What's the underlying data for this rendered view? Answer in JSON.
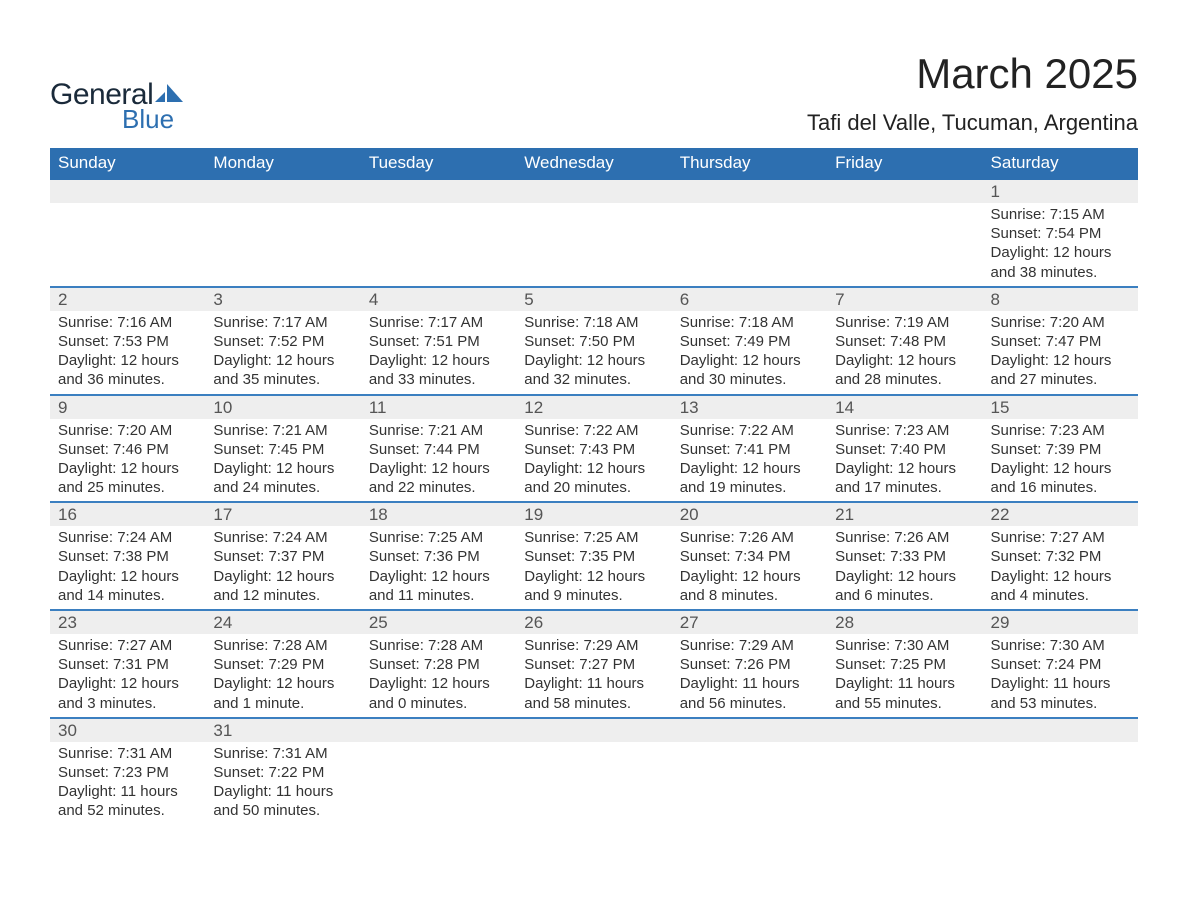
{
  "logo": {
    "text_general": "General",
    "text_blue": "Blue",
    "sail_color": "#2d6fb0"
  },
  "title": "March 2025",
  "location": "Tafi del Valle, Tucuman, Argentina",
  "colors": {
    "header_bg": "#2d6fb0",
    "header_text": "#ffffff",
    "row_border": "#3b7fc0",
    "daynum_bg": "#eeeeee",
    "body_bg": "#ffffff",
    "text": "#333333"
  },
  "weekdays": [
    "Sunday",
    "Monday",
    "Tuesday",
    "Wednesday",
    "Thursday",
    "Friday",
    "Saturday"
  ],
  "weeks": [
    [
      null,
      null,
      null,
      null,
      null,
      null,
      {
        "day": "1",
        "sunrise": "Sunrise: 7:15 AM",
        "sunset": "Sunset: 7:54 PM",
        "dl1": "Daylight: 12 hours",
        "dl2": "and 38 minutes."
      }
    ],
    [
      {
        "day": "2",
        "sunrise": "Sunrise: 7:16 AM",
        "sunset": "Sunset: 7:53 PM",
        "dl1": "Daylight: 12 hours",
        "dl2": "and 36 minutes."
      },
      {
        "day": "3",
        "sunrise": "Sunrise: 7:17 AM",
        "sunset": "Sunset: 7:52 PM",
        "dl1": "Daylight: 12 hours",
        "dl2": "and 35 minutes."
      },
      {
        "day": "4",
        "sunrise": "Sunrise: 7:17 AM",
        "sunset": "Sunset: 7:51 PM",
        "dl1": "Daylight: 12 hours",
        "dl2": "and 33 minutes."
      },
      {
        "day": "5",
        "sunrise": "Sunrise: 7:18 AM",
        "sunset": "Sunset: 7:50 PM",
        "dl1": "Daylight: 12 hours",
        "dl2": "and 32 minutes."
      },
      {
        "day": "6",
        "sunrise": "Sunrise: 7:18 AM",
        "sunset": "Sunset: 7:49 PM",
        "dl1": "Daylight: 12 hours",
        "dl2": "and 30 minutes."
      },
      {
        "day": "7",
        "sunrise": "Sunrise: 7:19 AM",
        "sunset": "Sunset: 7:48 PM",
        "dl1": "Daylight: 12 hours",
        "dl2": "and 28 minutes."
      },
      {
        "day": "8",
        "sunrise": "Sunrise: 7:20 AM",
        "sunset": "Sunset: 7:47 PM",
        "dl1": "Daylight: 12 hours",
        "dl2": "and 27 minutes."
      }
    ],
    [
      {
        "day": "9",
        "sunrise": "Sunrise: 7:20 AM",
        "sunset": "Sunset: 7:46 PM",
        "dl1": "Daylight: 12 hours",
        "dl2": "and 25 minutes."
      },
      {
        "day": "10",
        "sunrise": "Sunrise: 7:21 AM",
        "sunset": "Sunset: 7:45 PM",
        "dl1": "Daylight: 12 hours",
        "dl2": "and 24 minutes."
      },
      {
        "day": "11",
        "sunrise": "Sunrise: 7:21 AM",
        "sunset": "Sunset: 7:44 PM",
        "dl1": "Daylight: 12 hours",
        "dl2": "and 22 minutes."
      },
      {
        "day": "12",
        "sunrise": "Sunrise: 7:22 AM",
        "sunset": "Sunset: 7:43 PM",
        "dl1": "Daylight: 12 hours",
        "dl2": "and 20 minutes."
      },
      {
        "day": "13",
        "sunrise": "Sunrise: 7:22 AM",
        "sunset": "Sunset: 7:41 PM",
        "dl1": "Daylight: 12 hours",
        "dl2": "and 19 minutes."
      },
      {
        "day": "14",
        "sunrise": "Sunrise: 7:23 AM",
        "sunset": "Sunset: 7:40 PM",
        "dl1": "Daylight: 12 hours",
        "dl2": "and 17 minutes."
      },
      {
        "day": "15",
        "sunrise": "Sunrise: 7:23 AM",
        "sunset": "Sunset: 7:39 PM",
        "dl1": "Daylight: 12 hours",
        "dl2": "and 16 minutes."
      }
    ],
    [
      {
        "day": "16",
        "sunrise": "Sunrise: 7:24 AM",
        "sunset": "Sunset: 7:38 PM",
        "dl1": "Daylight: 12 hours",
        "dl2": "and 14 minutes."
      },
      {
        "day": "17",
        "sunrise": "Sunrise: 7:24 AM",
        "sunset": "Sunset: 7:37 PM",
        "dl1": "Daylight: 12 hours",
        "dl2": "and 12 minutes."
      },
      {
        "day": "18",
        "sunrise": "Sunrise: 7:25 AM",
        "sunset": "Sunset: 7:36 PM",
        "dl1": "Daylight: 12 hours",
        "dl2": "and 11 minutes."
      },
      {
        "day": "19",
        "sunrise": "Sunrise: 7:25 AM",
        "sunset": "Sunset: 7:35 PM",
        "dl1": "Daylight: 12 hours",
        "dl2": "and 9 minutes."
      },
      {
        "day": "20",
        "sunrise": "Sunrise: 7:26 AM",
        "sunset": "Sunset: 7:34 PM",
        "dl1": "Daylight: 12 hours",
        "dl2": "and 8 minutes."
      },
      {
        "day": "21",
        "sunrise": "Sunrise: 7:26 AM",
        "sunset": "Sunset: 7:33 PM",
        "dl1": "Daylight: 12 hours",
        "dl2": "and 6 minutes."
      },
      {
        "day": "22",
        "sunrise": "Sunrise: 7:27 AM",
        "sunset": "Sunset: 7:32 PM",
        "dl1": "Daylight: 12 hours",
        "dl2": "and 4 minutes."
      }
    ],
    [
      {
        "day": "23",
        "sunrise": "Sunrise: 7:27 AM",
        "sunset": "Sunset: 7:31 PM",
        "dl1": "Daylight: 12 hours",
        "dl2": "and 3 minutes."
      },
      {
        "day": "24",
        "sunrise": "Sunrise: 7:28 AM",
        "sunset": "Sunset: 7:29 PM",
        "dl1": "Daylight: 12 hours",
        "dl2": "and 1 minute."
      },
      {
        "day": "25",
        "sunrise": "Sunrise: 7:28 AM",
        "sunset": "Sunset: 7:28 PM",
        "dl1": "Daylight: 12 hours",
        "dl2": "and 0 minutes."
      },
      {
        "day": "26",
        "sunrise": "Sunrise: 7:29 AM",
        "sunset": "Sunset: 7:27 PM",
        "dl1": "Daylight: 11 hours",
        "dl2": "and 58 minutes."
      },
      {
        "day": "27",
        "sunrise": "Sunrise: 7:29 AM",
        "sunset": "Sunset: 7:26 PM",
        "dl1": "Daylight: 11 hours",
        "dl2": "and 56 minutes."
      },
      {
        "day": "28",
        "sunrise": "Sunrise: 7:30 AM",
        "sunset": "Sunset: 7:25 PM",
        "dl1": "Daylight: 11 hours",
        "dl2": "and 55 minutes."
      },
      {
        "day": "29",
        "sunrise": "Sunrise: 7:30 AM",
        "sunset": "Sunset: 7:24 PM",
        "dl1": "Daylight: 11 hours",
        "dl2": "and 53 minutes."
      }
    ],
    [
      {
        "day": "30",
        "sunrise": "Sunrise: 7:31 AM",
        "sunset": "Sunset: 7:23 PM",
        "dl1": "Daylight: 11 hours",
        "dl2": "and 52 minutes."
      },
      {
        "day": "31",
        "sunrise": "Sunrise: 7:31 AM",
        "sunset": "Sunset: 7:22 PM",
        "dl1": "Daylight: 11 hours",
        "dl2": "and 50 minutes."
      },
      null,
      null,
      null,
      null,
      null
    ]
  ]
}
